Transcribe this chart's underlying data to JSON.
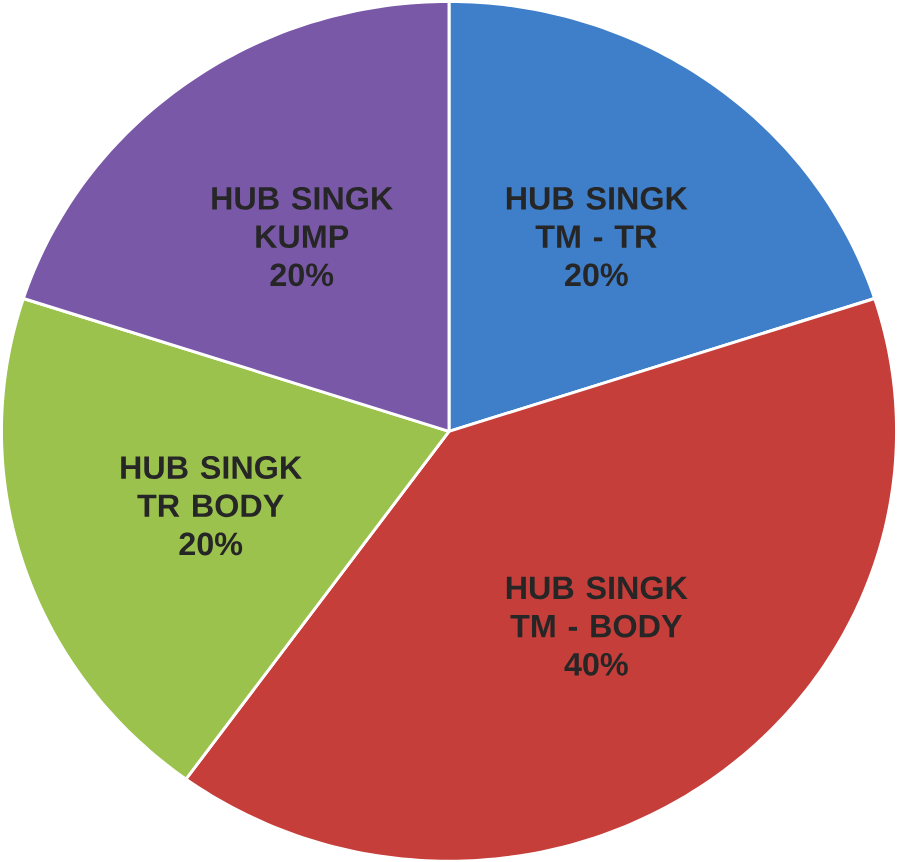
{
  "chart_data": {
    "type": "pie",
    "categories": [
      "HUB SINGK TM - TR",
      "HUB SINGK TM - BODY",
      "HUB SINGK TR BODY",
      "HUB SINGK KUMP"
    ],
    "values": [
      20,
      40,
      20,
      20
    ],
    "value_labels": [
      "20%",
      "40%",
      "20%",
      "20%"
    ],
    "colors": [
      "#3f7fc9",
      "#c63e3a",
      "#9cc24e",
      "#7a58a8"
    ]
  }
}
